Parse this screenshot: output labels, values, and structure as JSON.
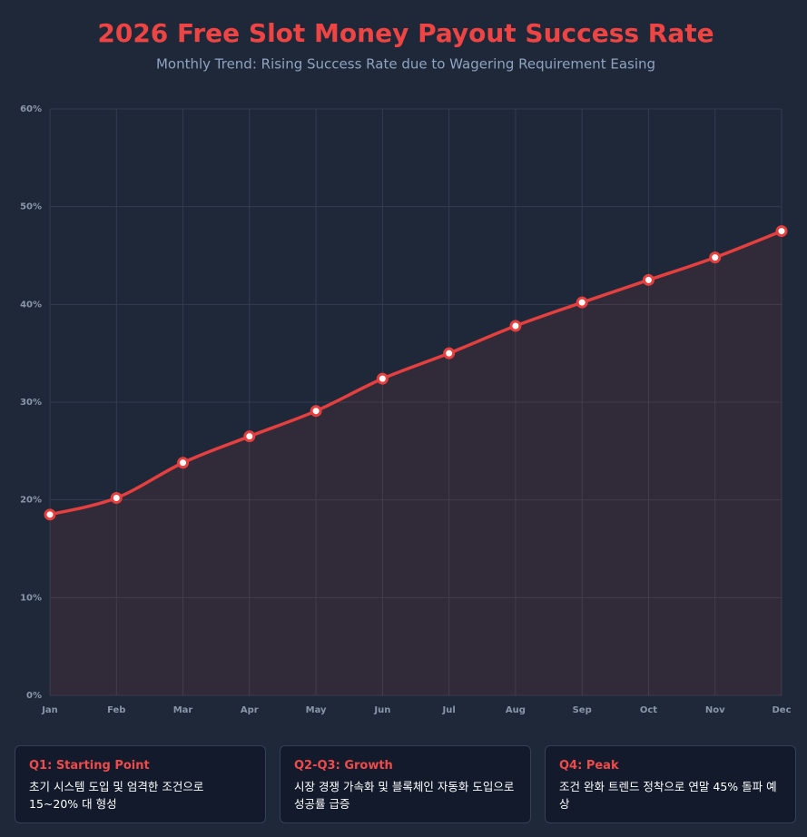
{
  "chart_data": {
    "type": "line",
    "title": "2026 Free Slot Money Payout Success Rate",
    "subtitle": "Monthly Trend: Rising Success Rate due to Wagering Requirement Easing",
    "categories": [
      "Jan",
      "Feb",
      "Mar",
      "Apr",
      "May",
      "Jun",
      "Jul",
      "Aug",
      "Sep",
      "Oct",
      "Nov",
      "Dec"
    ],
    "series": [
      {
        "color": "#e5403f",
        "values": [
          18.5,
          20.2,
          23.8,
          26.5,
          29.1,
          32.4,
          35.0,
          37.8,
          40.2,
          42.5,
          44.8,
          47.5
        ]
      }
    ],
    "ylim": [
      0,
      60
    ],
    "yticks": [
      {
        "value": 0,
        "label": "0%"
      },
      {
        "value": 10,
        "label": "10%"
      },
      {
        "value": 20,
        "label": "20%"
      },
      {
        "value": 30,
        "label": "30%"
      },
      {
        "value": 40,
        "label": "40%"
      },
      {
        "value": 50,
        "label": "50%"
      },
      {
        "value": 60,
        "label": "60%"
      }
    ],
    "grid": true
  },
  "cards": [
    {
      "title": "Q1: Starting Point",
      "text": "초기 시스템 도입 및 엄격한 조건으로 15~20% 대 형성"
    },
    {
      "title": "Q2-Q3: Growth",
      "text": "시장 경쟁 가속화 및 블록체인 자동화 도입으로 성공률 급증"
    },
    {
      "title": "Q4: Peak",
      "text": "조건 완화 트렌드 정착으로 연말 45% 돌파 예상"
    }
  ]
}
